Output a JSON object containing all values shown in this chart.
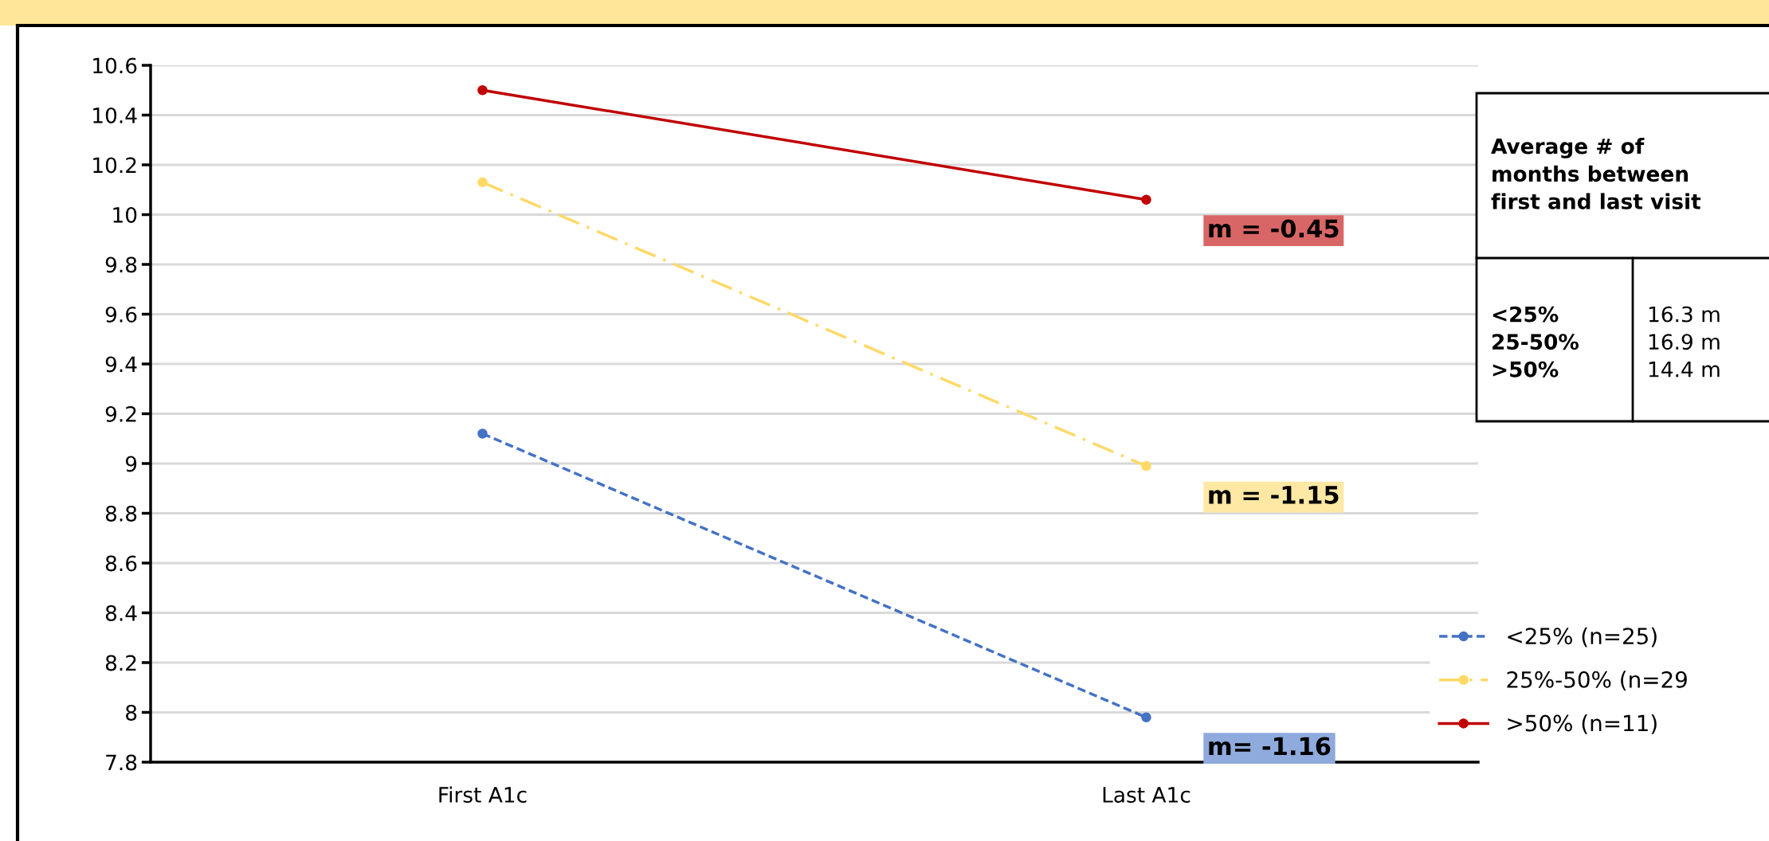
{
  "chart_data": {
    "type": "line",
    "categories": [
      "First A1c",
      "Last A1c"
    ],
    "series": [
      {
        "name": "<25% (n=25)",
        "color": "#4472c4",
        "values": [
          9.12,
          7.98
        ],
        "line_style": "dashed"
      },
      {
        "name": "25%-50% (n=29",
        "color": "#ffd966",
        "values": [
          10.13,
          8.99
        ],
        "line_style": "dashdot"
      },
      {
        "name": ">50% (n=11)",
        "color": "#c00000",
        "values": [
          10.5,
          10.06
        ],
        "line_style": "solid"
      }
    ],
    "ylim": [
      7.8,
      10.6
    ],
    "yticks": [
      7.8,
      8,
      8.2,
      8.4,
      8.6,
      8.8,
      9,
      9.2,
      9.4,
      9.6,
      9.8,
      10,
      10.2,
      10.4,
      10.6
    ],
    "grid": "y",
    "marker": "circle",
    "legend": "bottom right",
    "annotations": [
      {
        "text": "m = -0.45",
        "x": "Last A1c",
        "y": 10.06
      },
      {
        "text": "m = -1.15",
        "x": "Last A1c",
        "y": 8.99
      },
      {
        "text": "m= -1.16",
        "x": "Last A1c",
        "y": 7.98
      },
      "Average # of\nmonths between\nfirst and last visit",
      "<25%\n25-50%\n>50%",
      "16.3 m\n16.9 m\n14.4 m"
    ]
  }
}
